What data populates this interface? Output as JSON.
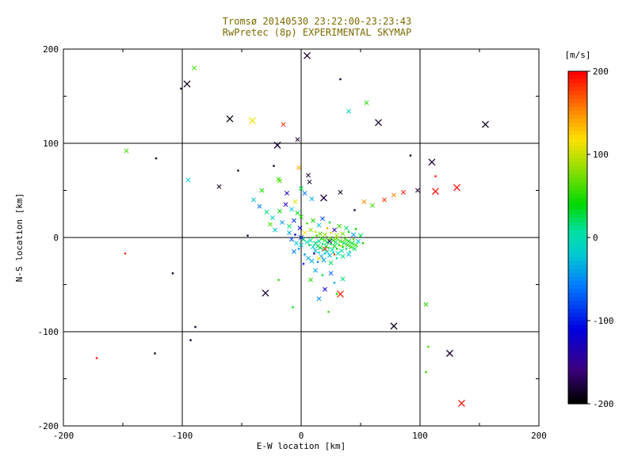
{
  "title": {
    "line1": "Tromsø 20140530 23:22:00-23:23:43",
    "line2": "RwPretec (8p) EXPERIMENTAL SKYMAP"
  },
  "colors": {
    "title": "#7a6a00",
    "axis": "#000000",
    "background": "#ffffff",
    "colorbar_label": "#ff0000"
  },
  "chart_data": {
    "type": "scatter",
    "title": "Tromsø 20140530 23:22:00-23:23:43 — RwPretec (8p) EXPERIMENTAL SKYMAP",
    "xlabel": "E-W location [km]",
    "ylabel": "N-S location [km]",
    "xlim": [
      -200,
      200
    ],
    "ylim": [
      -200,
      200
    ],
    "xticks": [
      -200,
      -100,
      0,
      100,
      200
    ],
    "yticks": [
      -200,
      -100,
      0,
      100,
      200
    ],
    "gridlines": [
      -100,
      0,
      100
    ],
    "grid": true,
    "legend_position": "none",
    "colorbar": {
      "label": "[m/s]",
      "ticks": [
        200,
        100,
        0,
        -100,
        -200
      ],
      "min": -200,
      "max": 200
    },
    "colormap": [
      [
        0.0,
        "#000000"
      ],
      [
        0.1,
        "#3c0080"
      ],
      [
        0.22,
        "#0000e0"
      ],
      [
        0.35,
        "#0078ff"
      ],
      [
        0.45,
        "#00ccd0"
      ],
      [
        0.52,
        "#00e0a0"
      ],
      [
        0.6,
        "#00d800"
      ],
      [
        0.72,
        "#a0e000"
      ],
      [
        0.8,
        "#ffe000"
      ],
      [
        0.88,
        "#ff8c00"
      ],
      [
        1.0,
        "#ff0000"
      ]
    ],
    "points_format": [
      "x_km",
      "y_km",
      "velocity_ms",
      "marker"
    ],
    "points": [
      [
        5,
        193,
        -185,
        "X"
      ],
      [
        -90,
        180,
        55,
        "x"
      ],
      [
        -96,
        163,
        -190,
        "X"
      ],
      [
        -101,
        158,
        -180,
        "."
      ],
      [
        -60,
        126,
        -195,
        "X"
      ],
      [
        -41,
        124,
        115,
        "X"
      ],
      [
        -15,
        120,
        185,
        "x"
      ],
      [
        40,
        134,
        -20,
        "x"
      ],
      [
        65,
        122,
        -185,
        "X"
      ],
      [
        155,
        120,
        -190,
        "X"
      ],
      [
        33,
        168,
        -185,
        "."
      ],
      [
        55,
        143,
        50,
        "x"
      ],
      [
        -147,
        92,
        60,
        "x"
      ],
      [
        -122,
        84,
        -195,
        "."
      ],
      [
        -20,
        98,
        -185,
        "X"
      ],
      [
        -3,
        104,
        -180,
        "x"
      ],
      [
        110,
        80,
        -185,
        "X"
      ],
      [
        113,
        65,
        190,
        "."
      ],
      [
        131,
        53,
        195,
        "X"
      ],
      [
        92,
        87,
        -185,
        "."
      ],
      [
        -95,
        61,
        -15,
        "x"
      ],
      [
        -69,
        54,
        -190,
        "x"
      ],
      [
        -53,
        71,
        -180,
        "."
      ],
      [
        -33,
        50,
        45,
        "x"
      ],
      [
        -23,
        76,
        -185,
        "."
      ],
      [
        -19,
        62,
        55,
        "x"
      ],
      [
        7,
        59,
        -185,
        "x"
      ],
      [
        19,
        42,
        -180,
        "X"
      ],
      [
        33,
        48,
        -190,
        "x"
      ],
      [
        45,
        29,
        -185,
        "."
      ],
      [
        53,
        38,
        150,
        "x"
      ],
      [
        60,
        34,
        60,
        "x"
      ],
      [
        70,
        40,
        185,
        "x"
      ],
      [
        78,
        45,
        155,
        "x"
      ],
      [
        86,
        48,
        190,
        "x"
      ],
      [
        98,
        50,
        -185,
        "x"
      ],
      [
        113,
        49,
        195,
        "X"
      ],
      [
        -148,
        -17,
        185,
        "."
      ],
      [
        -108,
        -38,
        -185,
        "."
      ],
      [
        -45,
        2,
        -185,
        "."
      ],
      [
        -89,
        -95,
        -185,
        "."
      ],
      [
        -93,
        -109,
        -190,
        "."
      ],
      [
        -30,
        -59,
        -185,
        "X"
      ],
      [
        -19,
        -45,
        50,
        "."
      ],
      [
        -7,
        -74,
        45,
        "."
      ],
      [
        33,
        -60,
        190,
        "X"
      ],
      [
        23,
        -79,
        55,
        "."
      ],
      [
        78,
        -94,
        -190,
        "X"
      ],
      [
        105,
        -71,
        50,
        "x"
      ],
      [
        107,
        -116,
        60,
        "."
      ],
      [
        -172,
        -128,
        190,
        "."
      ],
      [
        -123,
        -123,
        -190,
        "."
      ],
      [
        125,
        -123,
        -185,
        "X"
      ],
      [
        105,
        -143,
        55,
        "."
      ],
      [
        135,
        -176,
        195,
        "X"
      ],
      [
        -40,
        40,
        -25,
        "x"
      ],
      [
        -35,
        33,
        -60,
        "x"
      ],
      [
        -29,
        27,
        15,
        "x"
      ],
      [
        -24,
        21,
        -10,
        "x"
      ],
      [
        -18,
        28,
        40,
        "x"
      ],
      [
        -13,
        35,
        -130,
        "x"
      ],
      [
        -8,
        30,
        -20,
        "x"
      ],
      [
        -3,
        26,
        35,
        "x"
      ],
      [
        -16,
        16,
        -45,
        "x"
      ],
      [
        -10,
        12,
        20,
        "x"
      ],
      [
        -6,
        18,
        -90,
        "x"
      ],
      [
        0,
        22,
        50,
        "x"
      ],
      [
        -22,
        8,
        -30,
        "x"
      ],
      [
        -26,
        14,
        60,
        "x"
      ],
      [
        -5,
        38,
        110,
        "x"
      ],
      [
        -12,
        47,
        -140,
        "x"
      ],
      [
        0,
        52,
        25,
        "x"
      ],
      [
        9,
        41,
        -30,
        "x"
      ],
      [
        -18,
        60,
        60,
        "x"
      ],
      [
        6,
        66,
        -180,
        "x"
      ],
      [
        -2,
        74,
        140,
        "x"
      ],
      [
        3,
        47,
        -60,
        "x"
      ],
      [
        2,
        -2,
        20,
        "x"
      ],
      [
        5,
        -5,
        -10,
        "x"
      ],
      [
        7,
        -8,
        30,
        "."
      ],
      [
        8,
        -3,
        10,
        "x"
      ],
      [
        10,
        -10,
        -20,
        "x"
      ],
      [
        10,
        0,
        40,
        "."
      ],
      [
        12,
        -6,
        15,
        "x"
      ],
      [
        12,
        -14,
        -35,
        "x"
      ],
      [
        13,
        2,
        60,
        "."
      ],
      [
        14,
        -9,
        25,
        "x"
      ],
      [
        15,
        -4,
        5,
        "x"
      ],
      [
        15,
        -16,
        -15,
        "."
      ],
      [
        16,
        -11,
        35,
        "x"
      ],
      [
        17,
        -1,
        45,
        "x"
      ],
      [
        17,
        -20,
        -40,
        "x"
      ],
      [
        18,
        -7,
        20,
        "."
      ],
      [
        19,
        -13,
        10,
        "x"
      ],
      [
        20,
        -3,
        55,
        "x"
      ],
      [
        20,
        -17,
        -25,
        "."
      ],
      [
        21,
        -9,
        30,
        "x"
      ],
      [
        22,
        -5,
        15,
        "x"
      ],
      [
        22,
        -15,
        -10,
        "x"
      ],
      [
        23,
        -11,
        40,
        "."
      ],
      [
        24,
        -1,
        65,
        "x"
      ],
      [
        24,
        -19,
        -30,
        "x"
      ],
      [
        25,
        -7,
        25,
        "."
      ],
      [
        26,
        -13,
        5,
        "x"
      ],
      [
        27,
        -3,
        50,
        "x"
      ],
      [
        27,
        -16,
        -20,
        "."
      ],
      [
        28,
        -9,
        35,
        "x"
      ],
      [
        29,
        -5,
        20,
        "x"
      ],
      [
        30,
        -12,
        45,
        "."
      ],
      [
        30,
        -1,
        70,
        "x"
      ],
      [
        31,
        -17,
        -15,
        "x"
      ],
      [
        32,
        -8,
        30,
        "."
      ],
      [
        33,
        -4,
        55,
        "x"
      ],
      [
        34,
        -14,
        10,
        "x"
      ],
      [
        35,
        -10,
        40,
        "."
      ],
      [
        36,
        -6,
        25,
        "x"
      ],
      [
        37,
        -2,
        60,
        "x"
      ],
      [
        38,
        -12,
        15,
        "."
      ],
      [
        39,
        -8,
        45,
        "x"
      ],
      [
        40,
        -4,
        35,
        "x"
      ],
      [
        41,
        -15,
        5,
        "."
      ],
      [
        42,
        -10,
        50,
        "x"
      ],
      [
        43,
        -6,
        30,
        "x"
      ],
      [
        44,
        -2,
        65,
        "."
      ],
      [
        45,
        -12,
        20,
        "x"
      ],
      [
        46,
        -8,
        55,
        "x"
      ],
      [
        48,
        -4,
        -20,
        "x"
      ],
      [
        0,
        -8,
        -30,
        "x"
      ],
      [
        -2,
        -12,
        -45,
        "."
      ],
      [
        -4,
        -6,
        -20,
        "x"
      ],
      [
        -6,
        -15,
        -60,
        "x"
      ],
      [
        3,
        -18,
        -50,
        "."
      ],
      [
        6,
        -22,
        -35,
        "x"
      ],
      [
        9,
        -25,
        -35,
        "x"
      ],
      [
        14,
        -26,
        -55,
        "."
      ],
      [
        19,
        -24,
        -45,
        "x"
      ],
      [
        25,
        -27,
        20,
        "x"
      ],
      [
        30,
        -22,
        -5,
        "."
      ],
      [
        35,
        -20,
        15,
        "x"
      ],
      [
        40,
        -18,
        -25,
        "x"
      ],
      [
        8,
        8,
        80,
        "x"
      ],
      [
        12,
        6,
        95,
        "."
      ],
      [
        16,
        4,
        70,
        "x"
      ],
      [
        20,
        3,
        85,
        "x"
      ],
      [
        25,
        5,
        100,
        "."
      ],
      [
        30,
        2,
        90,
        "x"
      ],
      [
        35,
        4,
        75,
        "x"
      ],
      [
        40,
        6,
        30,
        "."
      ],
      [
        44,
        3,
        -40,
        "x"
      ],
      [
        3,
        5,
        120,
        "x"
      ],
      [
        -1,
        10,
        -120,
        "x"
      ],
      [
        5,
        15,
        60,
        "."
      ],
      [
        10,
        18,
        45,
        "x"
      ],
      [
        15,
        13,
        -25,
        "x"
      ],
      [
        22,
        10,
        140,
        "."
      ],
      [
        28,
        8,
        -150,
        "x"
      ],
      [
        18,
        20,
        -80,
        "x"
      ],
      [
        24,
        16,
        30,
        "."
      ],
      [
        32,
        12,
        55,
        "x"
      ],
      [
        38,
        10,
        20,
        "x"
      ],
      [
        46,
        9,
        40,
        "."
      ],
      [
        50,
        2,
        25,
        "x"
      ],
      [
        52,
        -6,
        40,
        "."
      ],
      [
        0,
        0,
        -90,
        "x"
      ],
      [
        -5,
        3,
        -110,
        "."
      ],
      [
        -8,
        -2,
        -70,
        "x"
      ],
      [
        -10,
        5,
        -40,
        "x"
      ],
      [
        2,
        -28,
        -100,
        "."
      ],
      [
        20,
        -12,
        190,
        "x"
      ],
      [
        28,
        -18,
        170,
        "."
      ],
      [
        15,
        -22,
        120,
        "x"
      ],
      [
        33,
        -9,
        110,
        "."
      ],
      [
        24,
        -4,
        -170,
        "x"
      ],
      [
        11,
        -17,
        -160,
        "."
      ],
      [
        12,
        -35,
        -40,
        "x"
      ],
      [
        18,
        -40,
        30,
        "."
      ],
      [
        25,
        -38,
        -70,
        "x"
      ],
      [
        8,
        -45,
        50,
        "x"
      ],
      [
        28,
        -48,
        -30,
        "."
      ],
      [
        35,
        -44,
        15,
        "x"
      ],
      [
        20,
        -55,
        -120,
        "x"
      ],
      [
        30,
        -60,
        40,
        "."
      ],
      [
        15,
        -65,
        -50,
        "x"
      ]
    ]
  }
}
